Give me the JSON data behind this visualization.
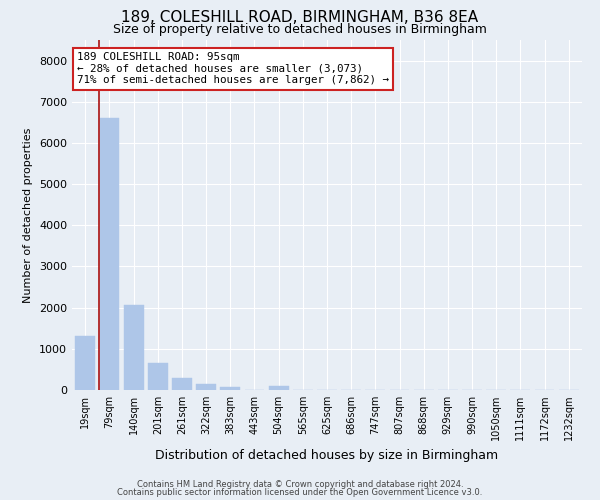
{
  "title1": "189, COLESHILL ROAD, BIRMINGHAM, B36 8EA",
  "title2": "Size of property relative to detached houses in Birmingham",
  "xlabel": "Distribution of detached houses by size in Birmingham",
  "ylabel": "Number of detached properties",
  "bin_labels": [
    "19sqm",
    "79sqm",
    "140sqm",
    "201sqm",
    "261sqm",
    "322sqm",
    "383sqm",
    "443sqm",
    "504sqm",
    "565sqm",
    "625sqm",
    "686sqm",
    "747sqm",
    "807sqm",
    "868sqm",
    "929sqm",
    "990sqm",
    "1050sqm",
    "1111sqm",
    "1172sqm",
    "1232sqm"
  ],
  "bar_heights": [
    1300,
    6600,
    2070,
    650,
    290,
    135,
    80,
    0,
    90,
    0,
    0,
    0,
    0,
    0,
    0,
    0,
    0,
    0,
    0,
    0,
    0
  ],
  "bar_color": "#aec6e8",
  "bar_edge_color": "#aec6e8",
  "vline_color": "#aa1111",
  "annotation_title": "189 COLESHILL ROAD: 95sqm",
  "annotation_line1": "← 28% of detached houses are smaller (3,073)",
  "annotation_line2": "71% of semi-detached houses are larger (7,862) →",
  "annotation_box_facecolor": "#ffffff",
  "annotation_box_edgecolor": "#cc2222",
  "ylim": [
    0,
    8500
  ],
  "yticks": [
    0,
    1000,
    2000,
    3000,
    4000,
    5000,
    6000,
    7000,
    8000
  ],
  "footer1": "Contains HM Land Registry data © Crown copyright and database right 2024.",
  "footer2": "Contains public sector information licensed under the Open Government Licence v3.0.",
  "bg_color": "#e8eef5",
  "plot_bg_color": "#e8eef5",
  "grid_color": "#ffffff",
  "title1_fontsize": 11,
  "title2_fontsize": 9,
  "ylabel_fontsize": 8,
  "xlabel_fontsize": 9,
  "tick_fontsize": 8,
  "xtick_fontsize": 7
}
